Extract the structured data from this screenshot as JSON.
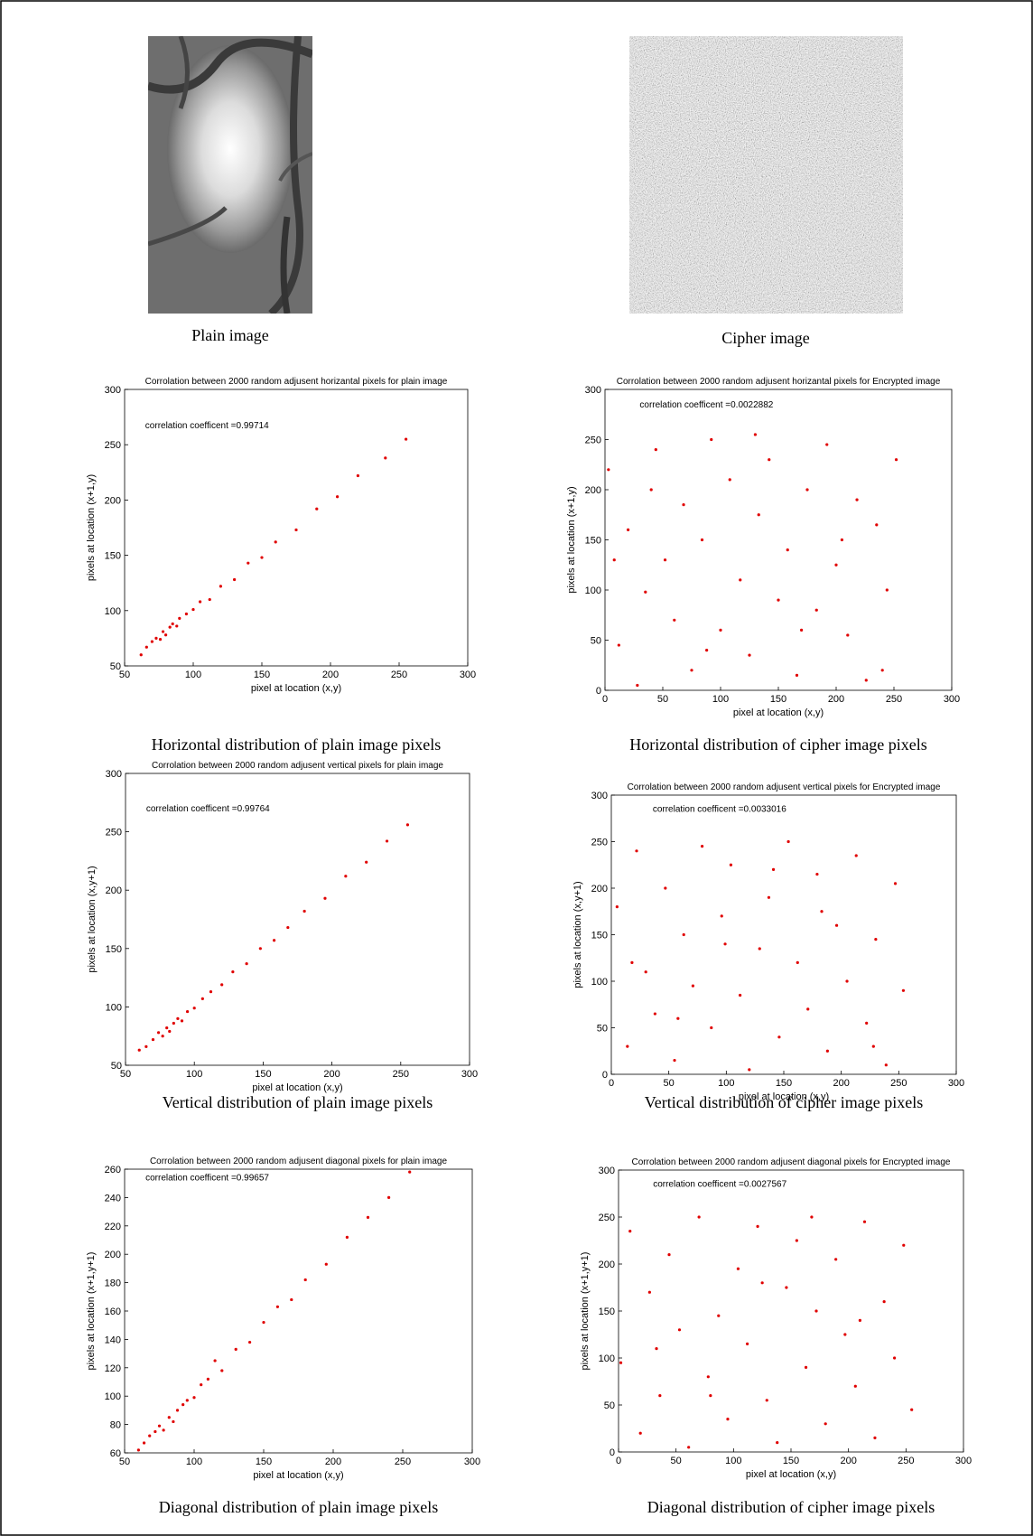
{
  "images": [
    {
      "caption": "Plain image"
    },
    {
      "caption": "Cipher image"
    }
  ],
  "chart_data": [
    {
      "type": "scatter",
      "title": "Corrolation between 2000 random adjusent horizantal pixels for plain image",
      "annotation": "correlation coefficent =0.99714",
      "xlabel": "pixel at location (x,y)",
      "ylabel": "pixels at location (x+1,y)",
      "caption": "Horizontal distribution of  plain image pixels",
      "color": "#e00000",
      "x": [
        62,
        66,
        70,
        73,
        76,
        78,
        80,
        83,
        85,
        88,
        90,
        95,
        100,
        105,
        112,
        120,
        130,
        140,
        150,
        160,
        175,
        190,
        205,
        220,
        240,
        255
      ],
      "values": [
        60,
        67,
        72,
        75,
        74,
        81,
        78,
        85,
        88,
        86,
        93,
        97,
        101,
        108,
        110,
        122,
        128,
        143,
        148,
        162,
        173,
        192,
        203,
        222,
        238,
        255
      ],
      "xlim": [
        50,
        300
      ],
      "ylim": [
        50,
        300
      ],
      "xticks": [
        50,
        100,
        150,
        200,
        250,
        300
      ],
      "yticks": [
        50,
        100,
        150,
        200,
        250,
        300
      ]
    },
    {
      "type": "scatter",
      "title": "Corrolation between 2000 random adjusent horizantal pixels for Encrypted image",
      "annotation": "correlation coefficent =0.0022882",
      "xlabel": "pixel at location (x,y)",
      "ylabel": "pixels at location (x+1,y)",
      "caption": "Horizontal distribution of cipher image pixels",
      "color": "#e00000",
      "x": [
        3,
        12,
        20,
        28,
        35,
        44,
        52,
        60,
        68,
        75,
        84,
        92,
        100,
        108,
        117,
        125,
        133,
        142,
        150,
        158,
        166,
        175,
        183,
        192,
        200,
        210,
        218,
        226,
        235,
        244,
        252,
        8,
        40,
        88,
        130,
        170,
        205,
        240
      ],
      "values": [
        220,
        45,
        160,
        5,
        98,
        240,
        130,
        70,
        185,
        20,
        150,
        250,
        60,
        210,
        110,
        35,
        175,
        230,
        90,
        140,
        15,
        200,
        80,
        245,
        125,
        55,
        190,
        10,
        165,
        100,
        230,
        130,
        200,
        40,
        255,
        60,
        150,
        20
      ],
      "xlim": [
        0,
        300
      ],
      "ylim": [
        0,
        300
      ],
      "xticks": [
        0,
        50,
        100,
        150,
        200,
        250,
        300
      ],
      "yticks": [
        0,
        50,
        100,
        150,
        200,
        250,
        300
      ]
    },
    {
      "type": "scatter",
      "title": "Corrolation between 2000 random adjusent vertical pixels for plain image",
      "annotation": "correlation coefficent =0.99764",
      "xlabel": "pixel at location (x,y)",
      "ylabel": "pixels at location (x,y+1)",
      "caption": "Vertical distribution of plain image pixels",
      "color": "#e00000",
      "x": [
        60,
        65,
        70,
        74,
        77,
        80,
        82,
        85,
        88,
        91,
        95,
        100,
        106,
        112,
        120,
        128,
        138,
        148,
        158,
        168,
        180,
        195,
        210,
        225,
        240,
        255
      ],
      "values": [
        63,
        66,
        72,
        78,
        75,
        82,
        79,
        86,
        90,
        88,
        96,
        99,
        107,
        113,
        119,
        130,
        137,
        150,
        157,
        168,
        182,
        193,
        212,
        224,
        242,
        256
      ],
      "xlim": [
        50,
        300
      ],
      "ylim": [
        50,
        300
      ],
      "xticks": [
        50,
        100,
        150,
        200,
        250,
        300
      ],
      "yticks": [
        50,
        100,
        150,
        200,
        250,
        300
      ]
    },
    {
      "type": "scatter",
      "title": "Corrolation between 2000 random adjusent vertical pixels for Encrypted image",
      "annotation": "correlation coefficent =0.0033016",
      "xlabel": "pixel at location (x,y)",
      "ylabel": "pixels at location (x,y+1)",
      "caption": "Vertical distribution of cipher image pixels",
      "color": "#e00000",
      "x": [
        5,
        14,
        22,
        30,
        38,
        47,
        55,
        63,
        71,
        79,
        87,
        96,
        104,
        112,
        120,
        129,
        137,
        146,
        154,
        162,
        171,
        179,
        188,
        196,
        205,
        213,
        222,
        230,
        239,
        247,
        254,
        18,
        58,
        99,
        141,
        183,
        228
      ],
      "values": [
        180,
        30,
        240,
        110,
        65,
        200,
        15,
        150,
        95,
        245,
        50,
        170,
        225,
        85,
        5,
        135,
        190,
        40,
        250,
        120,
        70,
        215,
        25,
        160,
        100,
        235,
        55,
        145,
        10,
        205,
        90,
        120,
        60,
        140,
        220,
        175,
        30
      ],
      "xlim": [
        0,
        300
      ],
      "ylim": [
        0,
        300
      ],
      "xticks": [
        0,
        50,
        100,
        150,
        200,
        250,
        300
      ],
      "yticks": [
        0,
        50,
        100,
        150,
        200,
        250,
        300
      ]
    },
    {
      "type": "scatter",
      "title": "Corrolation between 2000 random adjusent diagonal pixels for plain image",
      "annotation": "correlation coefficent =0.99657",
      "xlabel": "pixel at location (x,y)",
      "ylabel": "pixels at location (x+1,y+1)",
      "caption": "Diagonal distribution of plain image pixels",
      "color": "#e00000",
      "x": [
        60,
        64,
        68,
        72,
        75,
        78,
        82,
        85,
        88,
        92,
        95,
        100,
        105,
        110,
        115,
        120,
        130,
        140,
        150,
        160,
        170,
        180,
        195,
        210,
        225,
        240,
        255
      ],
      "values": [
        62,
        67,
        72,
        75,
        79,
        76,
        85,
        82,
        90,
        94,
        97,
        99,
        108,
        112,
        125,
        118,
        133,
        138,
        152,
        163,
        168,
        182,
        193,
        212,
        226,
        240,
        258
      ],
      "xlim": [
        50,
        300
      ],
      "ylim": [
        60,
        260
      ],
      "xticks": [
        50,
        100,
        150,
        200,
        250,
        300
      ],
      "yticks": [
        60,
        80,
        100,
        120,
        140,
        160,
        180,
        200,
        220,
        240,
        260
      ]
    },
    {
      "type": "scatter",
      "title": "Corrolation between 2000 random adjusent diagonal pixels for Encrypted image",
      "annotation": "correlation coefficent =0.0027567",
      "xlabel": "pixel at location (x,y)",
      "ylabel": "pixels at location (x+1,y+1)",
      "caption": "Diagonal distribution of cipher image pixels",
      "color": "#e00000",
      "x": [
        2,
        10,
        19,
        27,
        36,
        44,
        53,
        61,
        70,
        78,
        87,
        95,
        104,
        112,
        121,
        129,
        138,
        146,
        155,
        163,
        172,
        180,
        189,
        197,
        206,
        214,
        223,
        231,
        240,
        248,
        255,
        33,
        80,
        125,
        168,
        210
      ],
      "values": [
        95,
        235,
        20,
        170,
        60,
        210,
        130,
        5,
        250,
        80,
        145,
        35,
        195,
        115,
        240,
        55,
        10,
        175,
        225,
        90,
        150,
        30,
        205,
        125,
        70,
        245,
        15,
        160,
        100,
        220,
        45,
        110,
        60,
        180,
        250,
        140
      ],
      "xlim": [
        0,
        300
      ],
      "ylim": [
        0,
        300
      ],
      "xticks": [
        0,
        50,
        100,
        150,
        200,
        250,
        300
      ],
      "yticks": [
        0,
        50,
        100,
        150,
        200,
        250,
        300
      ]
    }
  ]
}
